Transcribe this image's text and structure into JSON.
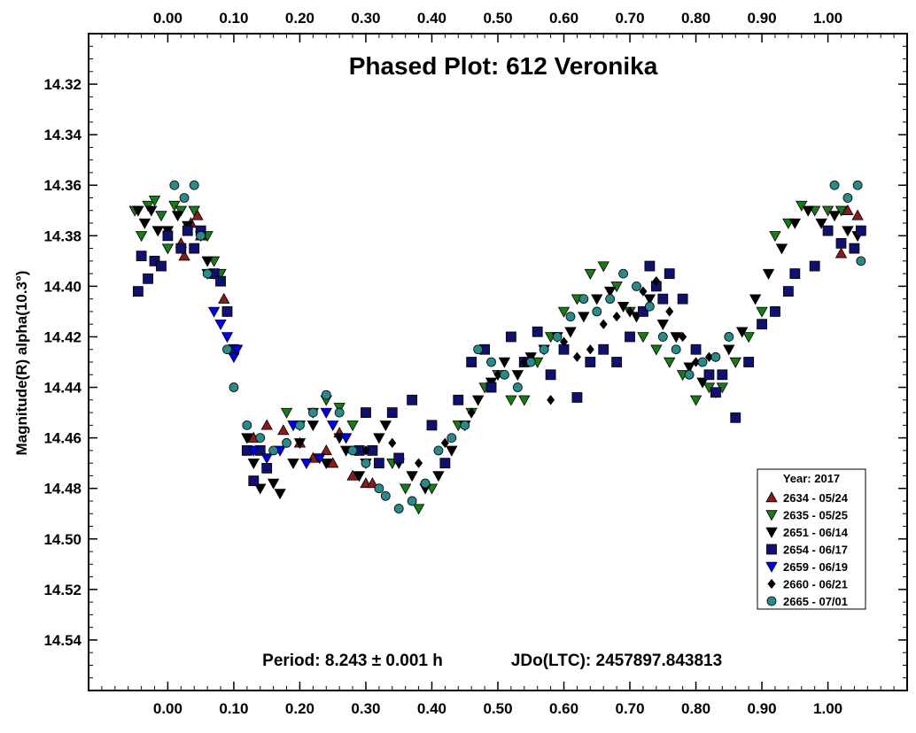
{
  "chart_data": {
    "type": "scatter",
    "title": "Phased Plot: 612 Veronika",
    "xlabel": "",
    "ylabel": "Magnitude(R) alpha(10.3°)",
    "xlim": [
      -0.12,
      1.12
    ],
    "ylim": [
      14.3,
      14.56
    ],
    "y_inverted": true,
    "x_ticks": [
      "0.00",
      "0.10",
      "0.20",
      "0.30",
      "0.40",
      "0.50",
      "0.60",
      "0.70",
      "0.80",
      "0.90",
      "1.00"
    ],
    "x_tick_values": [
      0,
      0.1,
      0.2,
      0.3,
      0.4,
      0.5,
      0.6,
      0.7,
      0.8,
      0.9,
      1.0
    ],
    "y_ticks": [
      "14.32",
      "14.34",
      "14.36",
      "14.38",
      "14.40",
      "14.42",
      "14.44",
      "14.46",
      "14.48",
      "14.50",
      "14.52",
      "14.54"
    ],
    "y_tick_values": [
      14.32,
      14.34,
      14.36,
      14.38,
      14.4,
      14.42,
      14.44,
      14.46,
      14.48,
      14.5,
      14.52,
      14.54
    ],
    "period_label": "Period: 8.243 ± 0.001 h",
    "jdo_label": "JDo(LTC): 2457897.843813",
    "legend_title": "Year: 2017",
    "legend_placement": "bottom-right",
    "series": [
      {
        "name": "2634 - 05/24",
        "marker": "triangle-up",
        "color": "#8b1a1a",
        "points": [
          [
            0.02,
            14.383
          ],
          [
            0.025,
            14.388
          ],
          [
            0.035,
            14.375
          ],
          [
            0.045,
            14.372
          ],
          [
            0.05,
            14.38
          ],
          [
            0.085,
            14.405
          ],
          [
            0.13,
            14.46
          ],
          [
            0.15,
            14.455
          ],
          [
            0.175,
            14.457
          ],
          [
            0.2,
            14.462
          ],
          [
            0.22,
            14.468
          ],
          [
            0.24,
            14.465
          ],
          [
            0.25,
            14.47
          ],
          [
            0.26,
            14.458
          ],
          [
            0.28,
            14.475
          ],
          [
            0.3,
            14.478
          ],
          [
            0.31,
            14.478
          ],
          [
            1.02,
            14.387
          ],
          [
            1.03,
            14.37
          ],
          [
            1.045,
            14.372
          ]
        ]
      },
      {
        "name": "2635 - 05/25",
        "marker": "triangle-down",
        "color": "#1a7a1a",
        "points": [
          [
            -0.05,
            14.37
          ],
          [
            -0.04,
            14.38
          ],
          [
            -0.03,
            14.368
          ],
          [
            -0.02,
            14.366
          ],
          [
            -0.01,
            14.372
          ],
          [
            0.0,
            14.385
          ],
          [
            0.01,
            14.368
          ],
          [
            0.02,
            14.37
          ],
          [
            0.04,
            14.37
          ],
          [
            0.06,
            14.38
          ],
          [
            0.07,
            14.39
          ],
          [
            0.08,
            14.395
          ],
          [
            0.18,
            14.45
          ],
          [
            0.2,
            14.455
          ],
          [
            0.22,
            14.45
          ],
          [
            0.24,
            14.445
          ],
          [
            0.26,
            14.448
          ],
          [
            0.28,
            14.455
          ],
          [
            0.34,
            14.47
          ],
          [
            0.36,
            14.48
          ],
          [
            0.38,
            14.488
          ],
          [
            0.4,
            14.48
          ],
          [
            0.44,
            14.455
          ],
          [
            0.46,
            14.45
          ],
          [
            0.48,
            14.44
          ],
          [
            0.5,
            14.435
          ],
          [
            0.52,
            14.445
          ],
          [
            0.54,
            14.445
          ],
          [
            0.56,
            14.43
          ],
          [
            0.58,
            14.42
          ],
          [
            0.6,
            14.41
          ],
          [
            0.62,
            14.405
          ],
          [
            0.64,
            14.395
          ],
          [
            0.66,
            14.392
          ],
          [
            0.68,
            14.4
          ],
          [
            0.7,
            14.41
          ],
          [
            0.72,
            14.42
          ],
          [
            0.74,
            14.425
          ],
          [
            0.76,
            14.43
          ],
          [
            0.78,
            14.435
          ],
          [
            0.8,
            14.445
          ],
          [
            0.82,
            14.44
          ],
          [
            0.84,
            14.44
          ],
          [
            0.86,
            14.43
          ],
          [
            0.88,
            14.42
          ],
          [
            0.9,
            14.41
          ],
          [
            0.92,
            14.38
          ],
          [
            0.94,
            14.375
          ],
          [
            0.96,
            14.368
          ],
          [
            0.98,
            14.37
          ],
          [
            1.0,
            14.37
          ],
          [
            1.02,
            14.37
          ]
        ]
      },
      {
        "name": "2651 - 06/14",
        "marker": "triangle-down",
        "color": "#000000",
        "points": [
          [
            -0.045,
            14.37
          ],
          [
            -0.035,
            14.375
          ],
          [
            -0.025,
            14.37
          ],
          [
            -0.015,
            14.378
          ],
          [
            0.0,
            14.378
          ],
          [
            0.015,
            14.372
          ],
          [
            0.03,
            14.376
          ],
          [
            0.05,
            14.38
          ],
          [
            0.06,
            14.39
          ],
          [
            0.07,
            14.395
          ],
          [
            0.12,
            14.46
          ],
          [
            0.13,
            14.47
          ],
          [
            0.14,
            14.48
          ],
          [
            0.16,
            14.478
          ],
          [
            0.17,
            14.482
          ],
          [
            0.19,
            14.47
          ],
          [
            0.2,
            14.462
          ],
          [
            0.22,
            14.455
          ],
          [
            0.24,
            14.47
          ],
          [
            0.26,
            14.46
          ],
          [
            0.27,
            14.465
          ],
          [
            0.29,
            14.475
          ],
          [
            0.3,
            14.47
          ],
          [
            0.32,
            14.46
          ],
          [
            0.33,
            14.455
          ],
          [
            0.35,
            14.47
          ],
          [
            0.37,
            14.475
          ],
          [
            0.39,
            14.48
          ],
          [
            0.41,
            14.475
          ],
          [
            0.43,
            14.465
          ],
          [
            0.45,
            14.455
          ],
          [
            0.47,
            14.445
          ],
          [
            0.49,
            14.438
          ],
          [
            0.51,
            14.43
          ],
          [
            0.53,
            14.435
          ],
          [
            0.55,
            14.428
          ],
          [
            0.57,
            14.425
          ],
          [
            0.59,
            14.42
          ],
          [
            0.61,
            14.418
          ],
          [
            0.63,
            14.412
          ],
          [
            0.65,
            14.405
          ],
          [
            0.67,
            14.402
          ],
          [
            0.69,
            14.408
          ],
          [
            0.71,
            14.412
          ],
          [
            0.73,
            14.405
          ],
          [
            0.75,
            14.415
          ],
          [
            0.77,
            14.42
          ],
          [
            0.79,
            14.432
          ],
          [
            0.81,
            14.438
          ],
          [
            0.83,
            14.442
          ],
          [
            0.85,
            14.425
          ],
          [
            0.87,
            14.418
          ],
          [
            0.89,
            14.405
          ],
          [
            0.91,
            14.395
          ],
          [
            0.93,
            14.385
          ],
          [
            0.95,
            14.375
          ],
          [
            0.97,
            14.37
          ],
          [
            0.99,
            14.375
          ],
          [
            1.01,
            14.372
          ],
          [
            1.03,
            14.378
          ],
          [
            1.045,
            14.38
          ]
        ]
      },
      {
        "name": "2654 - 06/17",
        "marker": "square",
        "color": "#10106e",
        "points": [
          [
            -0.045,
            14.402
          ],
          [
            -0.04,
            14.388
          ],
          [
            -0.03,
            14.397
          ],
          [
            -0.02,
            14.39
          ],
          [
            -0.01,
            14.392
          ],
          [
            0.0,
            14.38
          ],
          [
            0.02,
            14.385
          ],
          [
            0.03,
            14.378
          ],
          [
            0.04,
            14.385
          ],
          [
            0.05,
            14.378
          ],
          [
            0.07,
            14.395
          ],
          [
            0.08,
            14.398
          ],
          [
            0.09,
            14.41
          ],
          [
            0.1,
            14.425
          ],
          [
            0.12,
            14.465
          ],
          [
            0.13,
            14.477
          ],
          [
            0.14,
            14.465
          ],
          [
            0.15,
            14.472
          ],
          [
            0.29,
            14.465
          ],
          [
            0.3,
            14.45
          ],
          [
            0.31,
            14.465
          ],
          [
            0.32,
            14.47
          ],
          [
            0.34,
            14.45
          ],
          [
            0.35,
            14.468
          ],
          [
            0.37,
            14.445
          ],
          [
            0.4,
            14.455
          ],
          [
            0.42,
            14.47
          ],
          [
            0.44,
            14.445
          ],
          [
            0.46,
            14.43
          ],
          [
            0.48,
            14.425
          ],
          [
            0.49,
            14.44
          ],
          [
            0.52,
            14.42
          ],
          [
            0.54,
            14.43
          ],
          [
            0.56,
            14.418
          ],
          [
            0.58,
            14.435
          ],
          [
            0.6,
            14.425
          ],
          [
            0.62,
            14.444
          ],
          [
            0.64,
            14.43
          ],
          [
            0.66,
            14.425
          ],
          [
            0.68,
            14.43
          ],
          [
            0.7,
            14.42
          ],
          [
            0.72,
            14.41
          ],
          [
            0.73,
            14.392
          ],
          [
            0.74,
            14.4
          ],
          [
            0.75,
            14.405
          ],
          [
            0.76,
            14.395
          ],
          [
            0.78,
            14.405
          ],
          [
            0.8,
            14.425
          ],
          [
            0.82,
            14.435
          ],
          [
            0.83,
            14.442
          ],
          [
            0.84,
            14.435
          ],
          [
            0.86,
            14.452
          ],
          [
            0.88,
            14.43
          ],
          [
            0.9,
            14.415
          ],
          [
            0.92,
            14.41
          ],
          [
            0.94,
            14.402
          ],
          [
            0.95,
            14.395
          ],
          [
            0.98,
            14.392
          ],
          [
            1.0,
            14.378
          ],
          [
            1.02,
            14.383
          ],
          [
            1.04,
            14.385
          ],
          [
            1.05,
            14.378
          ]
        ]
      },
      {
        "name": "2659 - 06/19",
        "marker": "triangle-down",
        "color": "#0000ee",
        "points": [
          [
            0.06,
            14.395
          ],
          [
            0.07,
            14.41
          ],
          [
            0.08,
            14.415
          ],
          [
            0.09,
            14.42
          ],
          [
            0.1,
            14.428
          ],
          [
            0.105,
            14.425
          ],
          [
            0.13,
            14.465
          ],
          [
            0.15,
            14.468
          ],
          [
            0.17,
            14.465
          ],
          [
            0.19,
            14.455
          ],
          [
            0.21,
            14.47
          ],
          [
            0.23,
            14.468
          ],
          [
            0.24,
            14.45
          ],
          [
            0.25,
            14.455
          ],
          [
            0.27,
            14.46
          ]
        ]
      },
      {
        "name": "2660 - 06/21",
        "marker": "diamond",
        "color": "#000000",
        "points": [
          [
            0.3,
            14.465
          ],
          [
            0.34,
            14.462
          ],
          [
            0.38,
            14.47
          ],
          [
            0.42,
            14.462
          ],
          [
            0.46,
            14.45
          ],
          [
            0.5,
            14.435
          ],
          [
            0.54,
            14.43
          ],
          [
            0.58,
            14.445
          ],
          [
            0.6,
            14.422
          ],
          [
            0.62,
            14.428
          ],
          [
            0.64,
            14.425
          ],
          [
            0.66,
            14.415
          ],
          [
            0.68,
            14.412
          ],
          [
            0.7,
            14.41
          ],
          [
            0.72,
            14.402
          ],
          [
            0.74,
            14.398
          ],
          [
            0.76,
            14.41
          ],
          [
            0.78,
            14.42
          ],
          [
            0.8,
            14.43
          ],
          [
            0.82,
            14.428
          ]
        ]
      },
      {
        "name": "2665 - 07/01",
        "marker": "circle",
        "color": "#2a8a8a",
        "points": [
          [
            0.01,
            14.36
          ],
          [
            0.025,
            14.365
          ],
          [
            0.04,
            14.36
          ],
          [
            0.05,
            14.38
          ],
          [
            0.06,
            14.395
          ],
          [
            0.09,
            14.425
          ],
          [
            0.1,
            14.44
          ],
          [
            0.12,
            14.455
          ],
          [
            0.14,
            14.46
          ],
          [
            0.16,
            14.465
          ],
          [
            0.18,
            14.462
          ],
          [
            0.2,
            14.455
          ],
          [
            0.22,
            14.45
          ],
          [
            0.24,
            14.443
          ],
          [
            0.26,
            14.45
          ],
          [
            0.28,
            14.465
          ],
          [
            0.3,
            14.47
          ],
          [
            0.32,
            14.48
          ],
          [
            0.33,
            14.483
          ],
          [
            0.35,
            14.488
          ],
          [
            0.37,
            14.485
          ],
          [
            0.39,
            14.478
          ],
          [
            0.41,
            14.465
          ],
          [
            0.43,
            14.46
          ],
          [
            0.45,
            14.455
          ],
          [
            0.47,
            14.425
          ],
          [
            0.49,
            14.43
          ],
          [
            0.51,
            14.435
          ],
          [
            0.53,
            14.44
          ],
          [
            0.55,
            14.43
          ],
          [
            0.57,
            14.425
          ],
          [
            0.59,
            14.42
          ],
          [
            0.61,
            14.412
          ],
          [
            0.63,
            14.405
          ],
          [
            0.65,
            14.41
          ],
          [
            0.67,
            14.405
          ],
          [
            0.69,
            14.395
          ],
          [
            0.71,
            14.4
          ],
          [
            0.73,
            14.408
          ],
          [
            0.75,
            14.42
          ],
          [
            0.77,
            14.425
          ],
          [
            0.79,
            14.435
          ],
          [
            0.81,
            14.43
          ],
          [
            0.83,
            14.428
          ],
          [
            0.85,
            14.42
          ],
          [
            1.01,
            14.36
          ],
          [
            1.03,
            14.365
          ],
          [
            1.045,
            14.36
          ],
          [
            1.05,
            14.39
          ]
        ]
      }
    ]
  }
}
